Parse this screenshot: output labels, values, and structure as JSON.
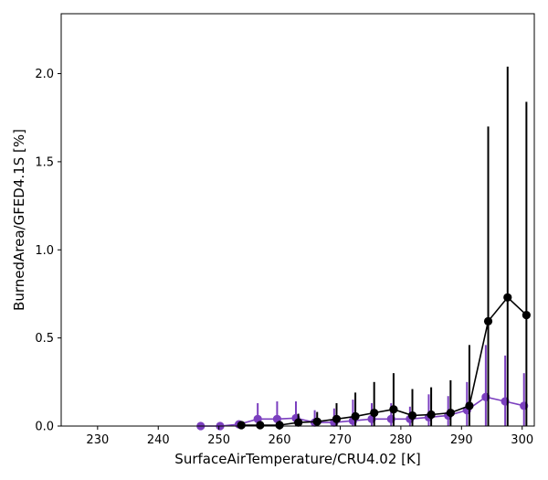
{
  "chart_data": {
    "type": "line",
    "title": "",
    "xlabel": "SurfaceAirTemperature/CRU4.02 [K]",
    "ylabel": "BurnedArea/GFED4.1S [%]",
    "xlim": [
      224,
      302
    ],
    "ylim": [
      0,
      2.34
    ],
    "xticks": [
      230,
      240,
      250,
      260,
      270,
      280,
      290,
      300
    ],
    "xtick_labels": [
      "230",
      "240",
      "250",
      "260",
      "270",
      "280",
      "290",
      "300"
    ],
    "yticks": [
      0.0,
      0.5,
      1.0,
      1.5,
      2.0
    ],
    "ytick_labels": [
      "0.0",
      "0.5",
      "1.0",
      "1.5",
      "2.0"
    ],
    "grid": false,
    "legend": "none",
    "series": [
      {
        "color": "#7b3fbf",
        "points": [
          {
            "x": 247.0,
            "y": 0.0,
            "lo": 0.0,
            "hi": 0.0
          },
          {
            "x": 250.2,
            "y": 0.0,
            "lo": 0.0,
            "hi": 0.005
          },
          {
            "x": 253.3,
            "y": 0.01,
            "lo": 0.0,
            "hi": 0.03
          },
          {
            "x": 256.4,
            "y": 0.04,
            "lo": 0.0,
            "hi": 0.13
          },
          {
            "x": 259.6,
            "y": 0.04,
            "lo": 0.0,
            "hi": 0.14
          },
          {
            "x": 262.7,
            "y": 0.045,
            "lo": 0.0,
            "hi": 0.14
          },
          {
            "x": 265.8,
            "y": 0.02,
            "lo": 0.0,
            "hi": 0.09
          },
          {
            "x": 269.0,
            "y": 0.02,
            "lo": 0.0,
            "hi": 0.1
          },
          {
            "x": 272.1,
            "y": 0.03,
            "lo": 0.0,
            "hi": 0.15
          },
          {
            "x": 275.2,
            "y": 0.04,
            "lo": 0.0,
            "hi": 0.13
          },
          {
            "x": 278.4,
            "y": 0.04,
            "lo": 0.0,
            "hi": 0.13
          },
          {
            "x": 281.5,
            "y": 0.04,
            "lo": 0.0,
            "hi": 0.11
          },
          {
            "x": 284.6,
            "y": 0.05,
            "lo": 0.0,
            "hi": 0.18
          },
          {
            "x": 287.8,
            "y": 0.06,
            "lo": 0.0,
            "hi": 0.17
          },
          {
            "x": 290.9,
            "y": 0.09,
            "lo": 0.0,
            "hi": 0.25
          },
          {
            "x": 294.0,
            "y": 0.165,
            "lo": 0.0,
            "hi": 0.46
          },
          {
            "x": 297.2,
            "y": 0.14,
            "lo": 0.0,
            "hi": 0.4
          },
          {
            "x": 300.3,
            "y": 0.115,
            "lo": 0.0,
            "hi": 0.3
          }
        ]
      },
      {
        "color": "#000000",
        "points": [
          {
            "x": 253.7,
            "y": 0.005,
            "lo": 0.0,
            "hi": 0.02
          },
          {
            "x": 256.8,
            "y": 0.005,
            "lo": 0.0,
            "hi": 0.02
          },
          {
            "x": 260.0,
            "y": 0.005,
            "lo": 0.0,
            "hi": 0.03
          },
          {
            "x": 263.1,
            "y": 0.02,
            "lo": 0.0,
            "hi": 0.07
          },
          {
            "x": 266.2,
            "y": 0.025,
            "lo": 0.0,
            "hi": 0.08
          },
          {
            "x": 269.4,
            "y": 0.04,
            "lo": 0.0,
            "hi": 0.13
          },
          {
            "x": 272.5,
            "y": 0.055,
            "lo": 0.0,
            "hi": 0.19
          },
          {
            "x": 275.6,
            "y": 0.075,
            "lo": 0.0,
            "hi": 0.25
          },
          {
            "x": 278.8,
            "y": 0.095,
            "lo": 0.0,
            "hi": 0.3
          },
          {
            "x": 281.9,
            "y": 0.06,
            "lo": 0.0,
            "hi": 0.21
          },
          {
            "x": 285.0,
            "y": 0.065,
            "lo": 0.0,
            "hi": 0.22
          },
          {
            "x": 288.2,
            "y": 0.075,
            "lo": 0.0,
            "hi": 0.26
          },
          {
            "x": 291.3,
            "y": 0.115,
            "lo": 0.0,
            "hi": 0.46
          },
          {
            "x": 294.4,
            "y": 0.595,
            "lo": 0.0,
            "hi": 1.7
          },
          {
            "x": 297.6,
            "y": 0.73,
            "lo": 0.0,
            "hi": 2.04
          },
          {
            "x": 300.7,
            "y": 0.63,
            "lo": 0.0,
            "hi": 1.84
          }
        ]
      }
    ]
  }
}
